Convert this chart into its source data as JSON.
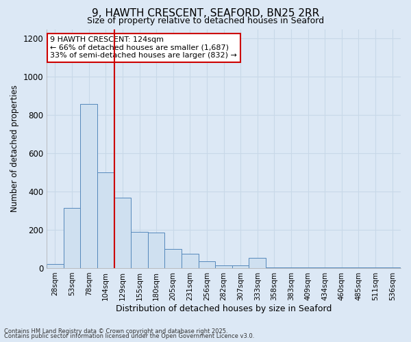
{
  "title_line1": "9, HAWTH CRESCENT, SEAFORD, BN25 2RR",
  "title_line2": "Size of property relative to detached houses in Seaford",
  "xlabel": "Distribution of detached houses by size in Seaford",
  "ylabel": "Number of detached properties",
  "categories": [
    "28sqm",
    "53sqm",
    "78sqm",
    "104sqm",
    "129sqm",
    "155sqm",
    "180sqm",
    "205sqm",
    "231sqm",
    "256sqm",
    "282sqm",
    "307sqm",
    "333sqm",
    "358sqm",
    "383sqm",
    "409sqm",
    "434sqm",
    "460sqm",
    "485sqm",
    "511sqm",
    "536sqm"
  ],
  "values": [
    20,
    315,
    860,
    500,
    370,
    190,
    185,
    100,
    75,
    35,
    15,
    15,
    55,
    2,
    2,
    2,
    2,
    2,
    2,
    5,
    2
  ],
  "bar_color": "#cfe0f0",
  "bar_edge_color": "#5588bb",
  "grid_color": "#c8d8e8",
  "vline_color": "#cc0000",
  "vline_pos": 3.5,
  "annotation_text": "9 HAWTH CRESCENT: 124sqm\n← 66% of detached houses are smaller (1,687)\n33% of semi-detached houses are larger (832) →",
  "annotation_box_color": "#ffffff",
  "annotation_box_edge": "#cc0000",
  "ylim": [
    0,
    1250
  ],
  "yticks": [
    0,
    200,
    400,
    600,
    800,
    1000,
    1200
  ],
  "footnote1": "Contains HM Land Registry data © Crown copyright and database right 2025.",
  "footnote2": "Contains public sector information licensed under the Open Government Licence v3.0.",
  "bg_color": "#dce8f5"
}
